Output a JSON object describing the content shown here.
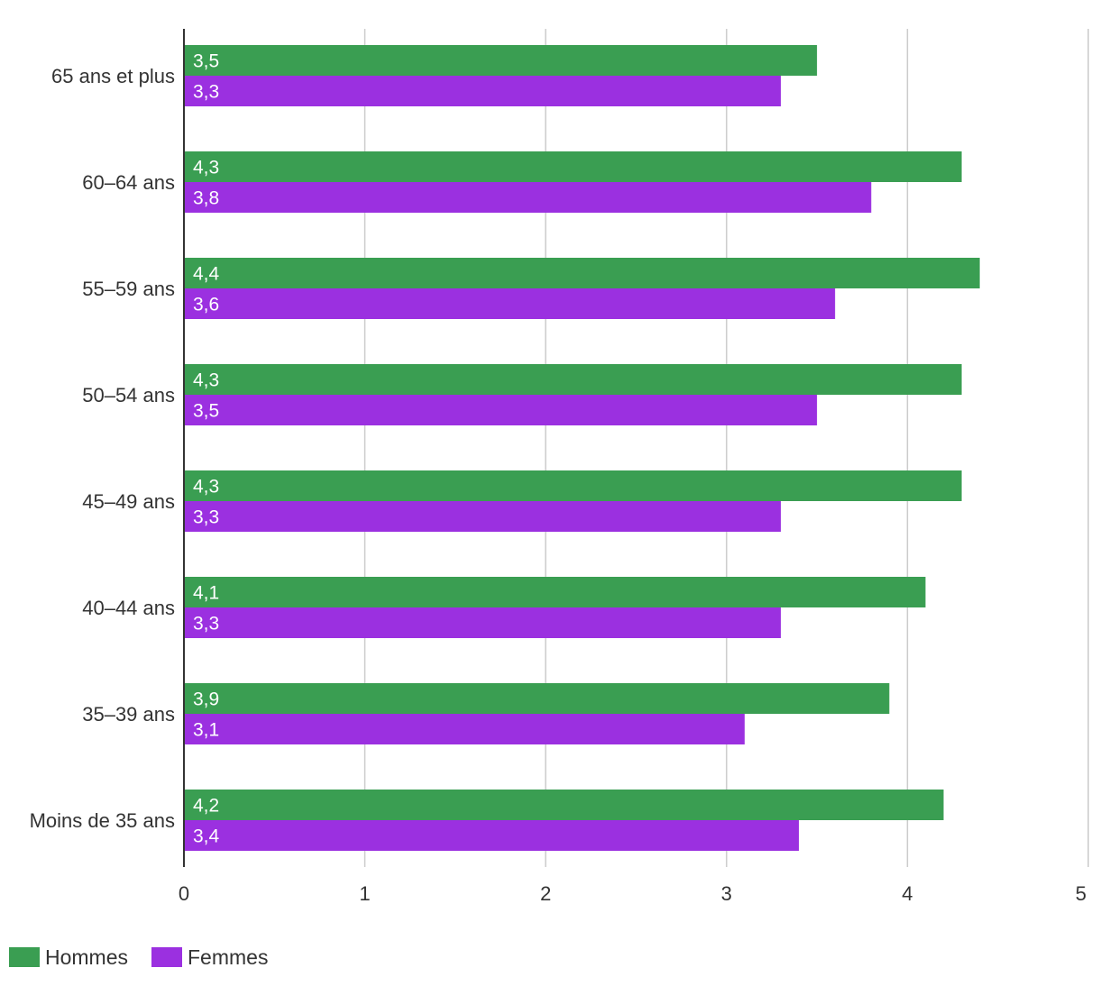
{
  "chart_data": {
    "type": "bar",
    "orientation": "horizontal",
    "title": "",
    "xlabel": "",
    "ylabel": "",
    "categories": [
      "65 ans et plus",
      "60–64 ans",
      "55–59 ans",
      "50–54 ans",
      "45–49 ans",
      "40–44 ans",
      "35–39 ans",
      "Moins de 35 ans"
    ],
    "series": [
      {
        "name": "Hommes",
        "color": "#3a9e52",
        "values": [
          3.5,
          4.3,
          4.4,
          4.3,
          4.3,
          4.1,
          3.9,
          4.2
        ],
        "labels": [
          "3,5",
          "4,3",
          "4,4",
          "4,3",
          "4,3",
          "4,1",
          "3,9",
          "4,2"
        ]
      },
      {
        "name": "Femmes",
        "color": "#9b30e0",
        "values": [
          3.3,
          3.8,
          3.6,
          3.5,
          3.3,
          3.3,
          3.1,
          3.4
        ],
        "labels": [
          "3,3",
          "3,8",
          "3,6",
          "3,5",
          "3,3",
          "3,3",
          "3,1",
          "3,4"
        ]
      }
    ],
    "xlim": [
      0,
      5
    ],
    "xticks": [
      0,
      1,
      2,
      3,
      4,
      5
    ],
    "xtick_labels": [
      "0",
      "1",
      "2",
      "3",
      "4",
      "5"
    ],
    "grid": true,
    "legend": "bottom-left"
  }
}
